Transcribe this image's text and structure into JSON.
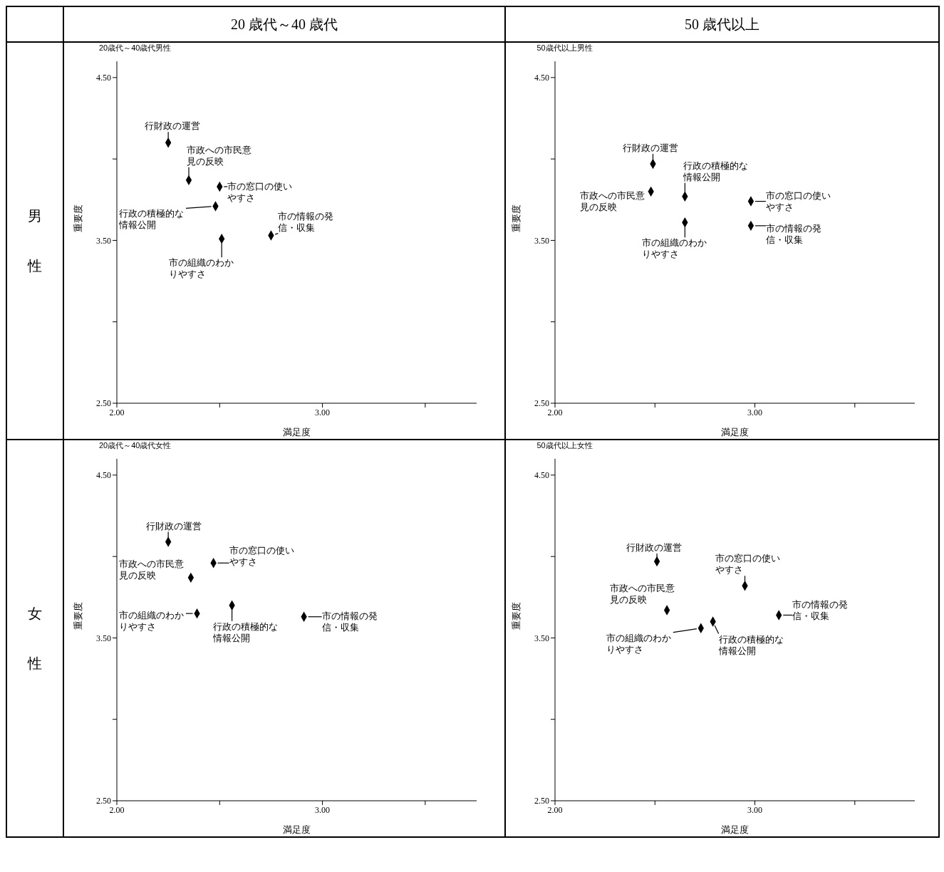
{
  "chart_data": [
    {
      "type": "scatter",
      "title": "20歳代～40歳代男性",
      "xlabel": "満足度",
      "ylabel": "重要度",
      "marker": "diamond",
      "color": "#000000",
      "x": [
        2.25,
        2.35,
        2.5,
        2.48,
        2.51,
        2.75
      ],
      "values": [
        4.1,
        3.87,
        3.83,
        3.71,
        3.51,
        3.53
      ],
      "xlim": [
        2.0,
        3.75
      ],
      "ylim": [
        2.5,
        4.6
      ],
      "xticks": [
        {
          "value": 2.0,
          "label": "2.00"
        },
        {
          "value": 2.5,
          "label": null
        },
        {
          "value": 3.0,
          "label": "3.00"
        },
        {
          "value": 3.5,
          "label": null
        }
      ],
      "yticks": [
        {
          "value": 2.5,
          "label": "2.50"
        },
        {
          "value": 3.0,
          "label": null
        },
        {
          "value": 3.5,
          "label": "3.50"
        },
        {
          "value": 4.0,
          "label": null
        },
        {
          "value": 4.5,
          "label": "4.50"
        }
      ],
      "annotations": [
        "20 歳代～40 歳代",
        "男性",
        {
          "text": "行財政の運営",
          "x": 2.25,
          "y": 4.1
        },
        {
          "text": "市政への市民意見の反映",
          "x": 2.35,
          "y": 3.87
        },
        {
          "text": "市の窓口の使いやすさ",
          "x": 2.5,
          "y": 3.83
        },
        {
          "text": "行政の積極的な情報公開",
          "x": 2.48,
          "y": 3.71
        },
        {
          "text": "市の組織のわかりやすさ",
          "x": 2.51,
          "y": 3.51
        },
        {
          "text": "市の情報の発信・収集",
          "x": 2.75,
          "y": 3.53
        }
      ]
    },
    {
      "type": "scatter",
      "title": "50歳代以上男性",
      "xlabel": "満足度",
      "ylabel": "重要度",
      "marker": "diamond",
      "color": "#000000",
      "x": [
        2.49,
        2.48,
        2.98,
        2.65,
        2.65,
        2.98
      ],
      "values": [
        3.97,
        3.8,
        3.74,
        3.77,
        3.61,
        3.59
      ],
      "xlim": [
        2.0,
        3.8
      ],
      "ylim": [
        2.5,
        4.6
      ],
      "xticks": [
        {
          "value": 2.0,
          "label": "2.00"
        },
        {
          "value": 2.5,
          "label": null
        },
        {
          "value": 3.0,
          "label": "3.00"
        },
        {
          "value": 3.5,
          "label": null
        }
      ],
      "yticks": [
        {
          "value": 2.5,
          "label": "2.50"
        },
        {
          "value": 3.0,
          "label": null
        },
        {
          "value": 3.5,
          "label": "3.50"
        },
        {
          "value": 4.0,
          "label": null
        },
        {
          "value": 4.5,
          "label": "4.50"
        }
      ],
      "annotations": [
        "50 歳代以上",
        {
          "text": "行財政の運営",
          "x": 2.49,
          "y": 3.97
        },
        {
          "text": "市政への市民意見の反映",
          "x": 2.48,
          "y": 3.8
        },
        {
          "text": "市の窓口の使いやすさ",
          "x": 2.98,
          "y": 3.74
        },
        {
          "text": "行政の積極的な情報公開",
          "x": 2.65,
          "y": 3.77
        },
        {
          "text": "市の組織のわかりやすさ",
          "x": 2.65,
          "y": 3.61
        },
        {
          "text": "市の情報の発信・収集",
          "x": 2.98,
          "y": 3.59
        }
      ]
    },
    {
      "type": "scatter",
      "title": "20歳代～40歳代女性",
      "xlabel": "満足度",
      "ylabel": "重要度",
      "marker": "diamond",
      "color": "#000000",
      "x": [
        2.25,
        2.36,
        2.47,
        2.56,
        2.39,
        2.91
      ],
      "values": [
        4.09,
        3.87,
        3.96,
        3.7,
        3.65,
        3.63
      ],
      "xlim": [
        2.0,
        3.75
      ],
      "ylim": [
        2.5,
        4.6
      ],
      "xticks": [
        {
          "value": 2.0,
          "label": "2.00"
        },
        {
          "value": 2.5,
          "label": null
        },
        {
          "value": 3.0,
          "label": "3.00"
        },
        {
          "value": 3.5,
          "label": null
        }
      ],
      "yticks": [
        {
          "value": 2.5,
          "label": "2.50"
        },
        {
          "value": 3.0,
          "label": null
        },
        {
          "value": 3.5,
          "label": "3.50"
        },
        {
          "value": 4.0,
          "label": null
        },
        {
          "value": 4.5,
          "label": "4.50"
        }
      ],
      "annotations": [
        "女性",
        {
          "text": "行財政の運営",
          "x": 2.25,
          "y": 4.09
        },
        {
          "text": "市政への市民意見の反映",
          "x": 2.36,
          "y": 3.87
        },
        {
          "text": "市の窓口の使いやすさ",
          "x": 2.47,
          "y": 3.96
        },
        {
          "text": "行政の積極的な情報公開",
          "x": 2.56,
          "y": 3.7
        },
        {
          "text": "市の組織のわかりやすさ",
          "x": 2.39,
          "y": 3.65
        },
        {
          "text": "市の情報の発信・収集",
          "x": 2.91,
          "y": 3.63
        }
      ]
    },
    {
      "type": "scatter",
      "title": "50歳代以上女性",
      "xlabel": "満足度",
      "ylabel": "重要度",
      "marker": "diamond",
      "color": "#000000",
      "x": [
        2.51,
        2.56,
        2.95,
        2.79,
        2.73,
        3.12
      ],
      "values": [
        3.97,
        3.67,
        3.82,
        3.6,
        3.56,
        3.64
      ],
      "xlim": [
        2.0,
        3.8
      ],
      "ylim": [
        2.5,
        4.6
      ],
      "xticks": [
        {
          "value": 2.0,
          "label": "2.00"
        },
        {
          "value": 2.5,
          "label": null
        },
        {
          "value": 3.0,
          "label": "3.00"
        },
        {
          "value": 3.5,
          "label": null
        }
      ],
      "yticks": [
        {
          "value": 2.5,
          "label": "2.50"
        },
        {
          "value": 3.0,
          "label": null
        },
        {
          "value": 3.5,
          "label": "3.50"
        },
        {
          "value": 4.0,
          "label": null
        },
        {
          "value": 4.5,
          "label": "4.50"
        }
      ],
      "annotations": [
        {
          "text": "行財政の運営",
          "x": 2.51,
          "y": 3.97
        },
        {
          "text": "市政への市民意見の反映",
          "x": 2.56,
          "y": 3.67
        },
        {
          "text": "市の窓口の使いやすさ",
          "x": 2.95,
          "y": 3.82
        },
        {
          "text": "行政の積極的な情報公開",
          "x": 2.79,
          "y": 3.6
        },
        {
          "text": "市の組織のわかりやすさ",
          "x": 2.73,
          "y": 3.56
        },
        {
          "text": "市の情報の発信・収集",
          "x": 3.12,
          "y": 3.64
        }
      ]
    }
  ]
}
